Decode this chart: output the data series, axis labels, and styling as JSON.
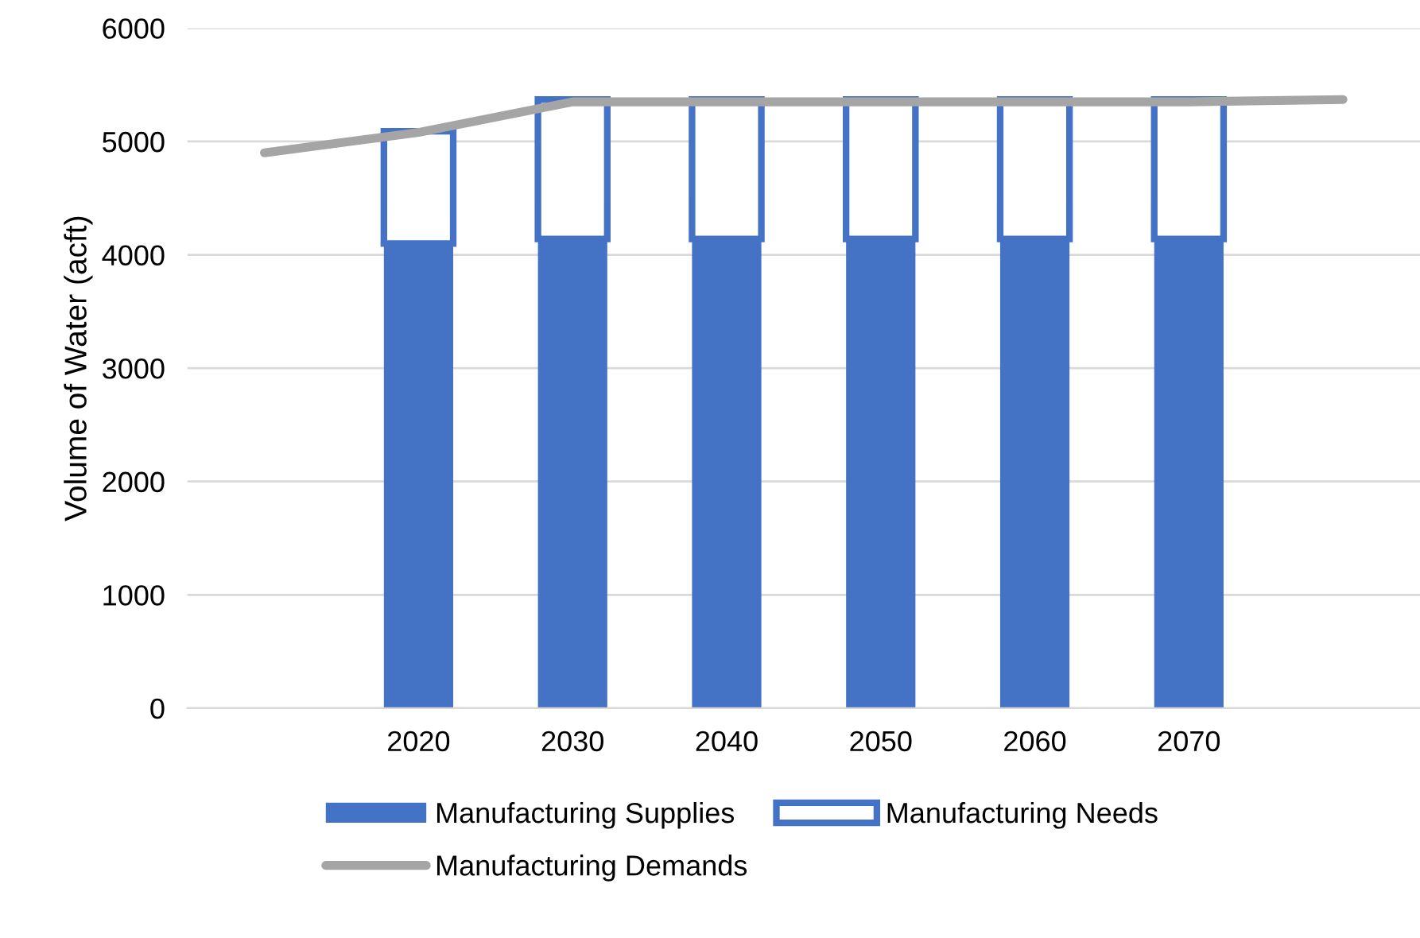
{
  "chart_data": {
    "type": "bar",
    "stacked": true,
    "ylabel": "Volume of Water (acft)",
    "categories": [
      null,
      "2020",
      "2030",
      "2040",
      "2050",
      "2060",
      "2070",
      null
    ],
    "series": [
      {
        "name": "Manufacturing Supplies",
        "color": "#4472c4",
        "values": [
          null,
          4100,
          4140,
          4140,
          4140,
          4140,
          4140,
          null
        ]
      },
      {
        "name": "Manufacturing Needs",
        "color": "#ffffff",
        "values": [
          null,
          990,
          1230,
          1230,
          1230,
          1230,
          1230,
          null
        ]
      },
      {
        "name": "Manufacturing Demands",
        "type": "line",
        "color": "#a5a5a5",
        "values": [
          4900,
          5080,
          5350,
          5350,
          5350,
          5350,
          5350,
          5370
        ]
      }
    ],
    "ylim": [
      0,
      6000
    ],
    "yticks": [
      0,
      1000,
      2000,
      3000,
      4000,
      5000,
      6000
    ],
    "grid": "y",
    "legend": "bottom"
  }
}
